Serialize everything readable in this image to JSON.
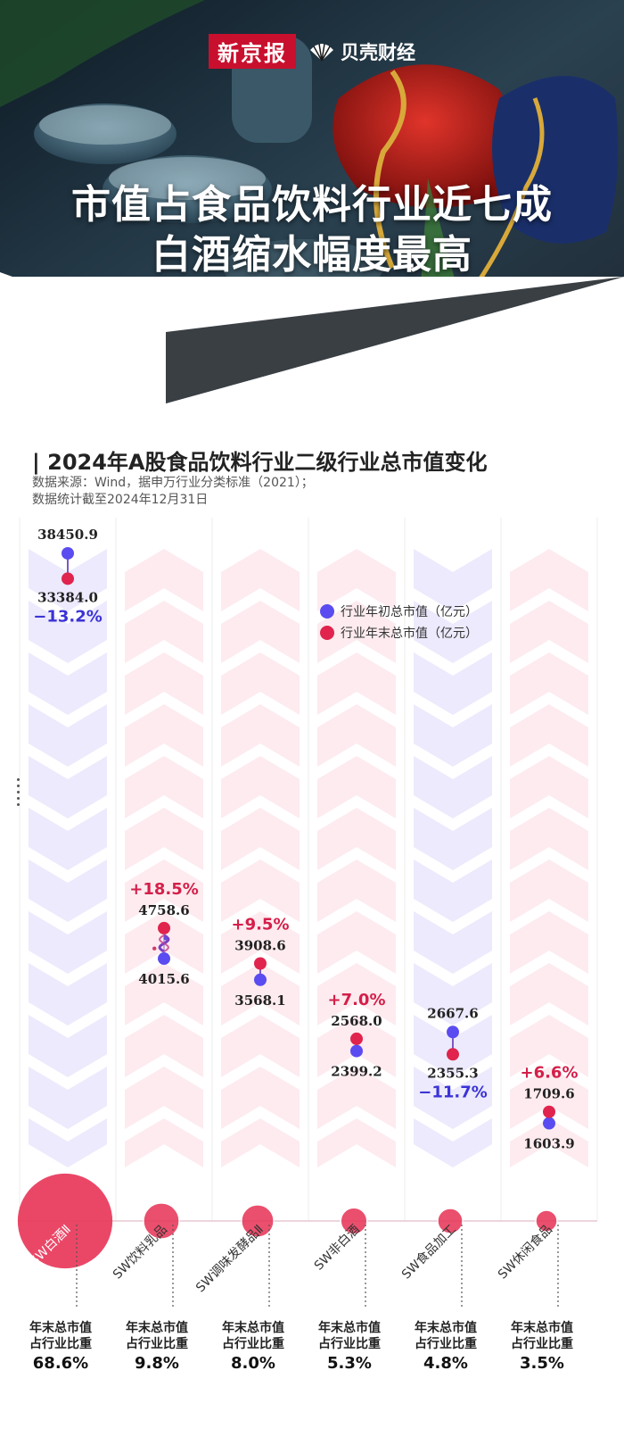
{
  "header": {
    "logo_xjb": "新京报",
    "logo_beike": "贝壳财经",
    "title_line1": "市值占食品饮料行业近七成",
    "title_line2": "白酒缩水幅度最高"
  },
  "section": {
    "title": "| 2024年A股食品饮料行业二级行业总市值变化",
    "source_line1": "数据来源：Wind，据申万行业分类标准（2021）；",
    "source_line2": "数据统计截至2024年12月31日"
  },
  "colors": {
    "start": "#5a4cf0",
    "end": "#e0244d",
    "pos": "#d41f4a",
    "neg": "#3b33d6"
  },
  "chart_data": {
    "type": "dumbbell",
    "legend": [
      {
        "label": "行业年初总市值（亿元）",
        "color": "#5a4cf0"
      },
      {
        "label": "行业年末总市值（亿元）",
        "color": "#e0244d"
      }
    ],
    "categories": [
      "SW白酒Ⅱ",
      "SW饮料乳品",
      "SW调味发酵品Ⅱ",
      "SW非白酒",
      "SW食品加工",
      "SW休闲食品"
    ],
    "start_values": [
      38450.9,
      4015.6,
      3568.1,
      2399.2,
      2667.6,
      1603.9
    ],
    "end_values": [
      33384.0,
      4758.6,
      3908.6,
      2568.0,
      2355.3,
      1709.6
    ],
    "start_labels": [
      "38450.9",
      "4015.6",
      "3568.1",
      "2399.2",
      "2667.6",
      "1603.9"
    ],
    "end_labels": [
      "33384.0",
      "4758.6",
      "3908.6",
      "2568.0",
      "2355.3",
      "1709.6"
    ],
    "change_labels": [
      "−13.2%",
      "+18.5%",
      "+9.5%",
      "+7.0%",
      "−11.7%",
      "+6.6%"
    ],
    "share_label": "年末总市值占行业比重",
    "share_label_line1": "年末总市值",
    "share_label_line2": "占行业比重",
    "share_values": [
      68.6,
      9.8,
      8.0,
      5.3,
      4.8,
      3.5
    ],
    "share_labels": [
      "68.6%",
      "9.8%",
      "8.0%",
      "5.3%",
      "4.8%",
      "3.5%"
    ]
  }
}
